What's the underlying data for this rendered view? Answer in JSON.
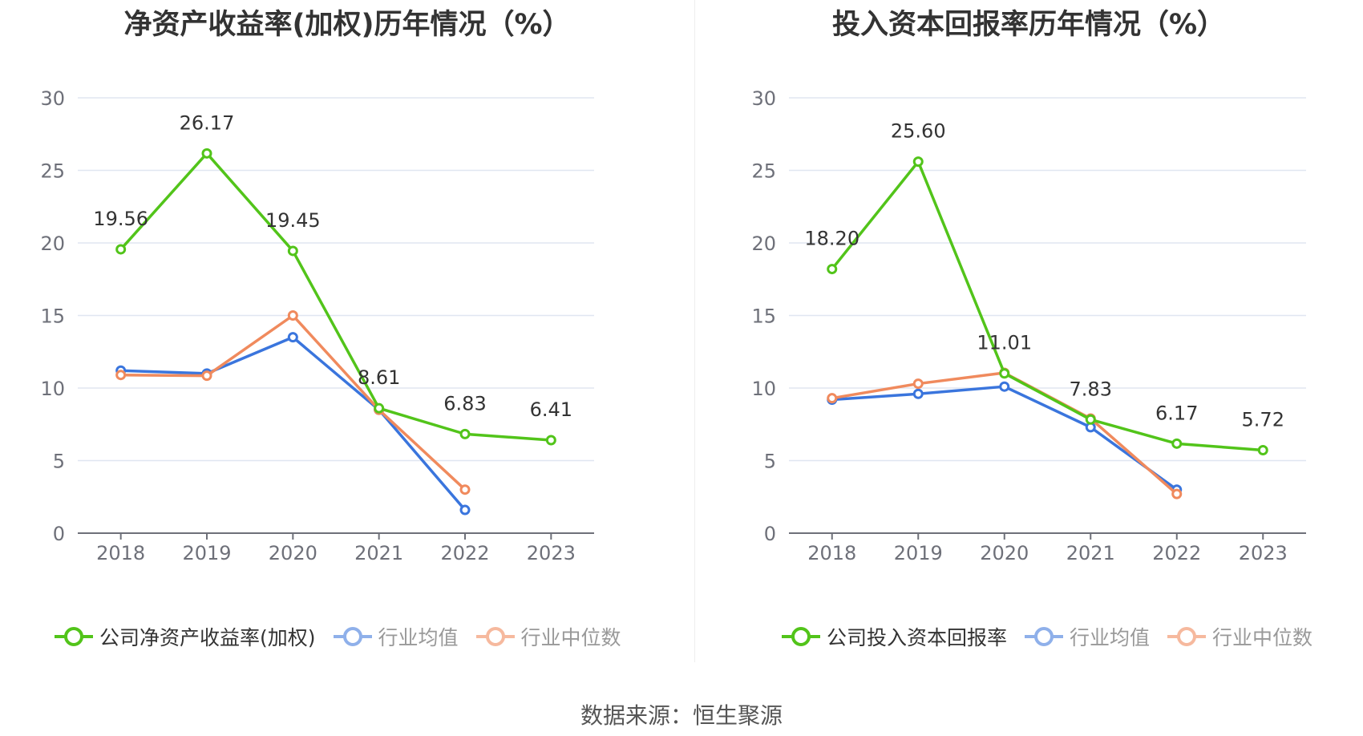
{
  "source": "数据来源：恒生聚源",
  "chart_data": [
    {
      "type": "line",
      "title": "净资产收益率(加权)历年情况（%）",
      "categories": [
        "2018",
        "2019",
        "2020",
        "2021",
        "2022",
        "2023"
      ],
      "ylim": [
        0,
        30
      ],
      "yticks": [
        0,
        5,
        10,
        15,
        20,
        25,
        30
      ],
      "grid": true,
      "legend_position": "bottom",
      "series": [
        {
          "name": "公司净资产收益率(加权)",
          "color": "#52c41a",
          "values": [
            19.56,
            26.17,
            19.45,
            8.61,
            6.83,
            6.41
          ],
          "labels": [
            "19.56",
            "26.17",
            "19.45",
            "8.61",
            "6.83",
            "6.41"
          ]
        },
        {
          "name": "行业均值",
          "color": "#3a75dd",
          "values": [
            11.2,
            11.0,
            13.5,
            8.5,
            1.6,
            null
          ]
        },
        {
          "name": "行业中位数",
          "color": "#f08a5d",
          "values": [
            10.9,
            10.85,
            15.0,
            8.5,
            3.0,
            null
          ]
        }
      ]
    },
    {
      "type": "line",
      "title": "投入资本回报率历年情况（%）",
      "categories": [
        "2018",
        "2019",
        "2020",
        "2021",
        "2022",
        "2023"
      ],
      "ylim": [
        0,
        30
      ],
      "yticks": [
        0,
        5,
        10,
        15,
        20,
        25,
        30
      ],
      "grid": true,
      "legend_position": "bottom",
      "series": [
        {
          "name": "公司投入资本回报率",
          "color": "#52c41a",
          "values": [
            18.2,
            25.6,
            11.01,
            7.83,
            6.17,
            5.72
          ],
          "labels": [
            "18.20",
            "25.60",
            "11.01",
            "7.83",
            "6.17",
            "5.72"
          ]
        },
        {
          "name": "行业均值",
          "color": "#3a75dd",
          "values": [
            9.2,
            9.6,
            10.1,
            7.3,
            3.0,
            null
          ]
        },
        {
          "name": "行业中位数",
          "color": "#f08a5d",
          "values": [
            9.3,
            10.3,
            11.05,
            7.9,
            2.7,
            null
          ]
        }
      ]
    }
  ]
}
